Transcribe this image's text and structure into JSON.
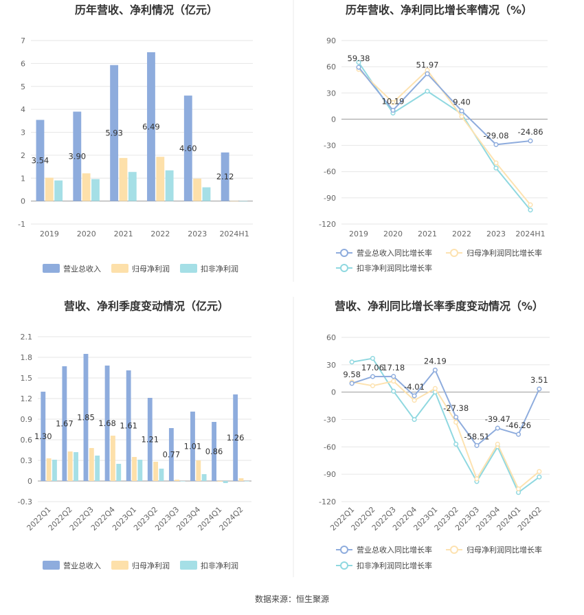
{
  "colors": {
    "revenue": "#8eacdd",
    "parent_net": "#fde0aa",
    "deducted_net": "#a5dfe6",
    "revenue_line": "#8eacdd",
    "parent_line": "#fde2b0",
    "deducted_line": "#8fd8e0",
    "grid": "#e6e6e6",
    "divider": "#e8e8e8"
  },
  "source": "数据来源：恒生聚源",
  "chart_data": [
    {
      "type": "bar",
      "title": "历年营收、净利情况（亿元）",
      "categories": [
        "2019",
        "2020",
        "2021",
        "2022",
        "2023",
        "2024H1"
      ],
      "ylim": [
        -1,
        7
      ],
      "yticks": [
        "-1",
        "0",
        "1",
        "2",
        "3",
        "4",
        "5",
        "6",
        "7"
      ],
      "series": [
        {
          "name": "营业总收入",
          "values": [
            3.54,
            3.9,
            5.93,
            6.49,
            4.6,
            2.12
          ],
          "labels": [
            "3.54",
            "3.90",
            "5.93",
            "6.49",
            "4.60",
            "2.12"
          ]
        },
        {
          "name": "归母净利润",
          "values": [
            1.02,
            1.21,
            1.88,
            1.93,
            0.98,
            0.0
          ]
        },
        {
          "name": "扣非净利润",
          "values": [
            0.9,
            0.96,
            1.27,
            1.34,
            0.6,
            -0.02
          ]
        }
      ],
      "legend": "bottom",
      "grid": true
    },
    {
      "type": "line",
      "title": "历年营收、净利同比增长率情况（%）",
      "categories": [
        "2019",
        "2020",
        "2021",
        "2022",
        "2023",
        "2024H1"
      ],
      "ylim": [
        -120,
        90
      ],
      "yticks": [
        "-120",
        "-90",
        "-60",
        "-30",
        "0",
        "30",
        "60",
        "90"
      ],
      "series": [
        {
          "name": "营业总收入同比增长率",
          "values": [
            59.38,
            10.19,
            51.97,
            9.4,
            -29.08,
            -24.86
          ],
          "labels": [
            "59.38",
            "10.19",
            "51.97",
            "9.40",
            "-29.08",
            "-24.86"
          ]
        },
        {
          "name": "归母净利润同比增长率",
          "values": [
            57.0,
            19.0,
            56.0,
            3.0,
            -50.0,
            -98.0
          ]
        },
        {
          "name": "扣非净利润同比增长率",
          "values": [
            65.0,
            7.0,
            32.0,
            6.0,
            -56.0,
            -104.0
          ]
        }
      ],
      "legend": "bottom",
      "grid": true
    },
    {
      "type": "bar",
      "title": "营收、净利季度变动情况（亿元）",
      "categories": [
        "2022Q1",
        "2022Q2",
        "2022Q3",
        "2022Q4",
        "2023Q1",
        "2023Q2",
        "2023Q3",
        "2023Q4",
        "2024Q1",
        "2024Q2"
      ],
      "ylim": [
        -0.3,
        2.1
      ],
      "yticks": [
        "-0.3",
        "0",
        "0.3",
        "0.6",
        "0.9",
        "1.2",
        "1.5",
        "1.8",
        "2.1"
      ],
      "series": [
        {
          "name": "营业总收入",
          "values": [
            1.3,
            1.67,
            1.85,
            1.68,
            1.61,
            1.21,
            0.77,
            1.01,
            0.86,
            1.26
          ],
          "labels": [
            "1.30",
            "1.67",
            "1.85",
            "1.68",
            "1.61",
            "1.21",
            "0.77",
            "1.01",
            "0.86",
            "1.26"
          ]
        },
        {
          "name": "归母净利润",
          "values": [
            0.33,
            0.43,
            0.48,
            0.66,
            0.35,
            0.28,
            0.02,
            0.3,
            -0.01,
            0.04
          ]
        },
        {
          "name": "扣非净利润",
          "values": [
            0.31,
            0.42,
            0.37,
            0.25,
            0.31,
            0.18,
            0.0,
            0.1,
            -0.03,
            0.0
          ]
        }
      ],
      "legend": "bottom",
      "grid": true
    },
    {
      "type": "line",
      "title": "营收、净利同比增长率季度变动情况（%）",
      "categories": [
        "2022Q1",
        "2022Q2",
        "2022Q3",
        "2022Q4",
        "2023Q1",
        "2023Q2",
        "2023Q3",
        "2023Q4",
        "2024Q1",
        "2024Q2"
      ],
      "ylim": [
        -120,
        60
      ],
      "yticks": [
        "-120",
        "-90",
        "-60",
        "-30",
        "0",
        "30",
        "60"
      ],
      "series": [
        {
          "name": "营业总收入同比增长率",
          "values": [
            9.58,
            17.06,
            17.18,
            -4.01,
            24.19,
            -27.38,
            -58.51,
            -39.47,
            -46.26,
            3.51
          ],
          "labels": [
            "9.58",
            "17.06",
            "17.18",
            "-4.01",
            "24.19",
            "-27.38",
            "-58.51",
            "-39.47",
            "-46.26",
            "3.51"
          ]
        },
        {
          "name": "归母净利润同比增长率",
          "values": [
            11.0,
            7.0,
            12.0,
            -9.0,
            4.0,
            -33.0,
            -95.0,
            -57.0,
            -106.0,
            -87.0
          ]
        },
        {
          "name": "扣非净利润同比增长率",
          "values": [
            33.0,
            37.0,
            1.0,
            -30.0,
            0.0,
            -57.0,
            -98.0,
            -60.0,
            -110.0,
            -93.0
          ]
        }
      ],
      "legend": "bottom",
      "grid": true
    }
  ]
}
